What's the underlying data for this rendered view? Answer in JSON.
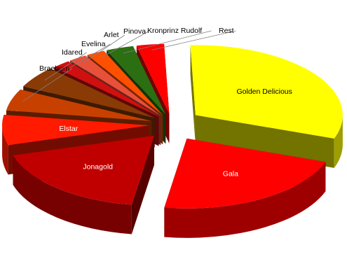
{
  "chart_data": {
    "type": "pie",
    "style": "3d-exploded",
    "title": "",
    "slices": [
      {
        "name": "Golden Delicious",
        "value": 31.0,
        "color": "#ffff00",
        "label_color": "#000000"
      },
      {
        "name": "Gala",
        "value": 22.0,
        "color": "#ff0000",
        "label_color": "#ffffff"
      },
      {
        "name": "Jonagold",
        "value": 18.0,
        "color": "#c00000",
        "label_color": "#ffffff"
      },
      {
        "name": "Elstar",
        "value": 7.0,
        "color": "#ff1a00",
        "label_color": "#ffffff"
      },
      {
        "name": "Braeburn",
        "value": 5.0,
        "color": "#c84000",
        "label_color": "#000000"
      },
      {
        "name": "Idared",
        "value": 5.0,
        "color": "#8a3a05",
        "label_color": "#000000"
      },
      {
        "name": "Evelina",
        "value": 2.0,
        "color": "#d01010",
        "label_color": "#000000"
      },
      {
        "name": "Arlet",
        "value": 2.0,
        "color": "#e8503a",
        "label_color": "#000000"
      },
      {
        "name": "Pinova",
        "value": 2.0,
        "color": "#ff5000",
        "label_color": "#000000"
      },
      {
        "name": "Kronprinz Rudolf",
        "value": 3.0,
        "color": "#2c6e12",
        "label_color": "#000000"
      },
      {
        "name": "Rest",
        "value": 3.0,
        "color": "#ff0000",
        "label_color": "#000000"
      }
    ],
    "legend": "none",
    "grid": false
  }
}
